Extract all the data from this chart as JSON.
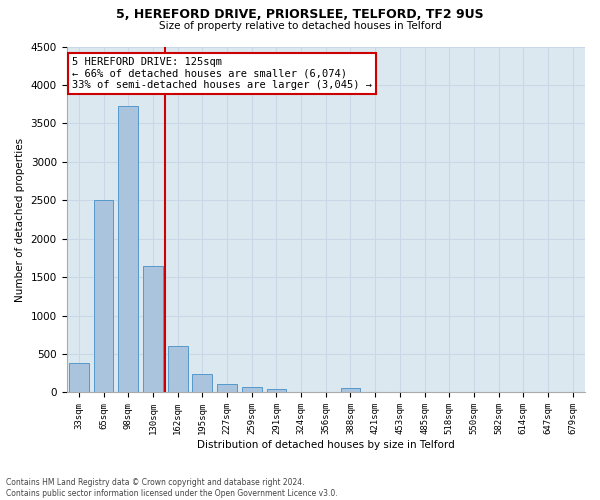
{
  "title1": "5, HEREFORD DRIVE, PRIORSLEE, TELFORD, TF2 9US",
  "title2": "Size of property relative to detached houses in Telford",
  "xlabel": "Distribution of detached houses by size in Telford",
  "ylabel": "Number of detached properties",
  "footnote": "Contains HM Land Registry data © Crown copyright and database right 2024.\nContains public sector information licensed under the Open Government Licence v3.0.",
  "categories": [
    "33sqm",
    "65sqm",
    "98sqm",
    "130sqm",
    "162sqm",
    "195sqm",
    "227sqm",
    "259sqm",
    "291sqm",
    "324sqm",
    "356sqm",
    "388sqm",
    "421sqm",
    "453sqm",
    "485sqm",
    "518sqm",
    "550sqm",
    "582sqm",
    "614sqm",
    "647sqm",
    "679sqm"
  ],
  "values": [
    380,
    2500,
    3730,
    1650,
    600,
    245,
    110,
    65,
    50,
    0,
    0,
    55,
    0,
    0,
    0,
    0,
    0,
    0,
    0,
    0,
    0
  ],
  "bar_color": "#aac4de",
  "bar_edge_color": "#5599cc",
  "vline_x": 3.5,
  "vline_color": "#cc0000",
  "annotation_text": "5 HEREFORD DRIVE: 125sqm\n← 66% of detached houses are smaller (6,074)\n33% of semi-detached houses are larger (3,045) →",
  "annotation_box_color": "#cc0000",
  "ylim": [
    0,
    4500
  ],
  "yticks": [
    0,
    500,
    1000,
    1500,
    2000,
    2500,
    3000,
    3500,
    4000,
    4500
  ],
  "grid_color": "#c8d8e8",
  "background_color": "#dce8f0"
}
